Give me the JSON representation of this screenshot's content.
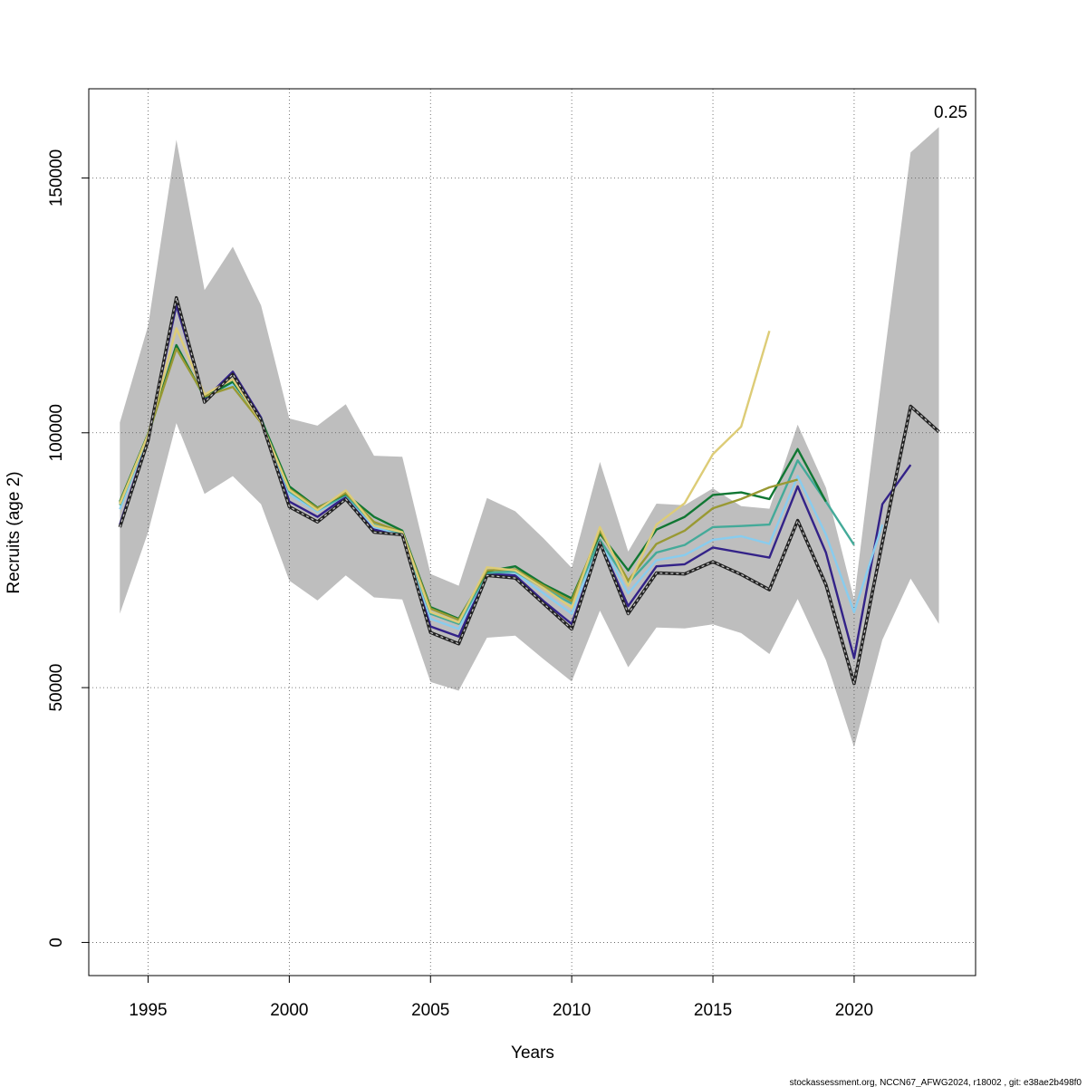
{
  "chart_data": {
    "type": "line",
    "title": "",
    "xlabel": "Years",
    "ylabel": "Recruits (age 2)",
    "annotation": "0.25",
    "footer": "stockassessment.org, NCCN67_AFWG2024, r18002 , git: e38ae2b498f0",
    "xlim": [
      1992.9,
      2024.3
    ],
    "ylim": [
      -6500,
      167500
    ],
    "x_ticks": [
      1995,
      2000,
      2005,
      2010,
      2015,
      2020
    ],
    "y_ticks": [
      0,
      50000,
      100000,
      150000
    ],
    "grid": true,
    "confidence_band": {
      "color": "#bebebe",
      "x": [
        1994,
        1995,
        1996,
        1997,
        1998,
        1999,
        2000,
        2001,
        2002,
        2003,
        2004,
        2005,
        2006,
        2007,
        2008,
        2009,
        2010,
        2011,
        2012,
        2013,
        2014,
        2015,
        2016,
        2017,
        2018,
        2019,
        2020,
        2021,
        2022,
        2023
      ],
      "upper": [
        102000,
        121000,
        157500,
        128000,
        136500,
        125000,
        102800,
        101400,
        105600,
        95500,
        95300,
        72300,
        70000,
        87200,
        84600,
        79300,
        73500,
        94300,
        76700,
        86100,
        85800,
        89100,
        85600,
        85100,
        101600,
        89200,
        67300,
        112000,
        155000,
        160000
      ],
      "lower": [
        64500,
        80500,
        101900,
        88000,
        91500,
        86000,
        71000,
        67100,
        72000,
        67700,
        67300,
        51100,
        49400,
        59800,
        60200,
        55600,
        51200,
        65100,
        54000,
        61800,
        61600,
        62400,
        60700,
        56600,
        67400,
        55400,
        38300,
        59400,
        71400,
        62500
      ]
    },
    "series": [
      {
        "color": "#222222",
        "style": "dashed-outline",
        "x": [
          1994,
          1995,
          1996,
          1997,
          1998,
          1999,
          2000,
          2001,
          2002,
          2003,
          2004,
          2005,
          2006,
          2007,
          2008,
          2009,
          2010,
          2011,
          2012,
          2013,
          2014,
          2015,
          2016,
          2017,
          2018,
          2019,
          2020,
          2021,
          2022,
          2023
        ],
        "values": [
          81500,
          98500,
          126500,
          106000,
          111500,
          102500,
          85500,
          82500,
          87000,
          80500,
          80000,
          60800,
          58600,
          72000,
          71500,
          66500,
          61500,
          78500,
          64500,
          72500,
          72300,
          74700,
          72200,
          69200,
          82800,
          70200,
          50800,
          78500,
          105200,
          100200
        ]
      },
      {
        "color": "#332288",
        "style": "solid",
        "x": [
          1994,
          1995,
          1996,
          1997,
          1998,
          1999,
          2000,
          2001,
          2002,
          2003,
          2004,
          2005,
          2006,
          2007,
          2008,
          2009,
          2010,
          2011,
          2012,
          2013,
          2014,
          2015,
          2016,
          2017,
          2018,
          2019,
          2020,
          2021,
          2022
        ],
        "values": [
          82000,
          99000,
          125000,
          106500,
          112000,
          103000,
          86500,
          83500,
          87500,
          81000,
          80000,
          62000,
          60000,
          72500,
          72000,
          67000,
          62500,
          78500,
          66000,
          73800,
          74200,
          77500,
          76500,
          75500,
          89500,
          76500,
          55800,
          86000,
          93700
        ]
      },
      {
        "color": "#88ccee",
        "style": "solid",
        "x": [
          1994,
          1995,
          1996,
          1997,
          1998,
          1999,
          2000,
          2001,
          2002,
          2003,
          2004,
          2005,
          2006,
          2007,
          2008,
          2009,
          2010,
          2011,
          2012,
          2013,
          2014,
          2015,
          2016,
          2017,
          2018,
          2019,
          2020,
          2021
        ],
        "values": [
          85000,
          99500,
          117000,
          107000,
          109500,
          102500,
          88000,
          84500,
          87800,
          81500,
          80000,
          63500,
          61500,
          72700,
          72500,
          68500,
          64500,
          78800,
          68500,
          75000,
          76000,
          79000,
          79700,
          78200,
          91500,
          80000,
          64800,
          82000
        ]
      },
      {
        "color": "#44aa99",
        "style": "solid",
        "x": [
          1994,
          1995,
          1996,
          1997,
          1998,
          1999,
          2000,
          2001,
          2002,
          2003,
          2004,
          2005,
          2006,
          2007,
          2008,
          2009,
          2010,
          2011,
          2012,
          2013,
          2014,
          2015,
          2016,
          2017,
          2018,
          2019,
          2020
        ],
        "values": [
          85800,
          99500,
          117000,
          107000,
          110000,
          102500,
          88500,
          84800,
          87800,
          82000,
          80200,
          64500,
          62500,
          72500,
          72800,
          69500,
          66500,
          79000,
          70500,
          76500,
          78000,
          81500,
          81700,
          82000,
          94600,
          86500,
          78000
        ]
      },
      {
        "color": "#117733",
        "style": "solid",
        "x": [
          1994,
          1995,
          1996,
          1997,
          1998,
          1999,
          2000,
          2001,
          2002,
          2003,
          2004,
          2005,
          2006,
          2007,
          2008,
          2009,
          2010,
          2011,
          2012,
          2013,
          2014,
          2015,
          2016,
          2017,
          2018,
          2019
        ],
        "values": [
          86500,
          99800,
          117200,
          107000,
          110000,
          102700,
          89500,
          85300,
          88000,
          83500,
          80800,
          65800,
          63500,
          72800,
          73800,
          70300,
          67500,
          80200,
          73000,
          81000,
          83500,
          87800,
          88300,
          87000,
          96800,
          86500
        ]
      },
      {
        "color": "#999933",
        "style": "solid",
        "x": [
          1994,
          1995,
          1996,
          1997,
          1998,
          1999,
          2000,
          2001,
          2002,
          2003,
          2004,
          2005,
          2006,
          2007,
          2008,
          2009,
          2010,
          2011,
          2012,
          2013,
          2014,
          2015,
          2016,
          2017,
          2018
        ],
        "values": [
          86300,
          99600,
          116500,
          107200,
          109000,
          102000,
          89000,
          85200,
          88200,
          82500,
          80500,
          65500,
          63300,
          73000,
          73200,
          70000,
          67000,
          80800,
          71000,
          78200,
          80800,
          85200,
          87000,
          89300,
          90800
        ]
      },
      {
        "color": "#ddcc77",
        "style": "solid",
        "x": [
          1994,
          1995,
          1996,
          1997,
          1998,
          1999,
          2000,
          2001,
          2002,
          2003,
          2004,
          2005,
          2006,
          2007,
          2008,
          2009,
          2010,
          2011,
          2012,
          2013,
          2014,
          2015,
          2016,
          2017
        ],
        "values": [
          86000,
          99600,
          120500,
          107500,
          110500,
          102200,
          88800,
          84800,
          88700,
          81800,
          80500,
          64800,
          62800,
          73600,
          73000,
          69500,
          65700,
          81500,
          70000,
          82000,
          86200,
          95800,
          101200,
          120000
        ]
      }
    ]
  }
}
